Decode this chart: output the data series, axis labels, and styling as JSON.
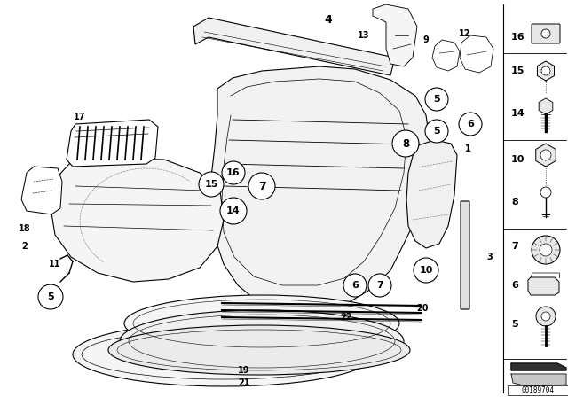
{
  "bg_color": "#ffffff",
  "diagram_id": "00189704",
  "figsize": [
    6.4,
    4.48
  ],
  "dpi": 100
}
